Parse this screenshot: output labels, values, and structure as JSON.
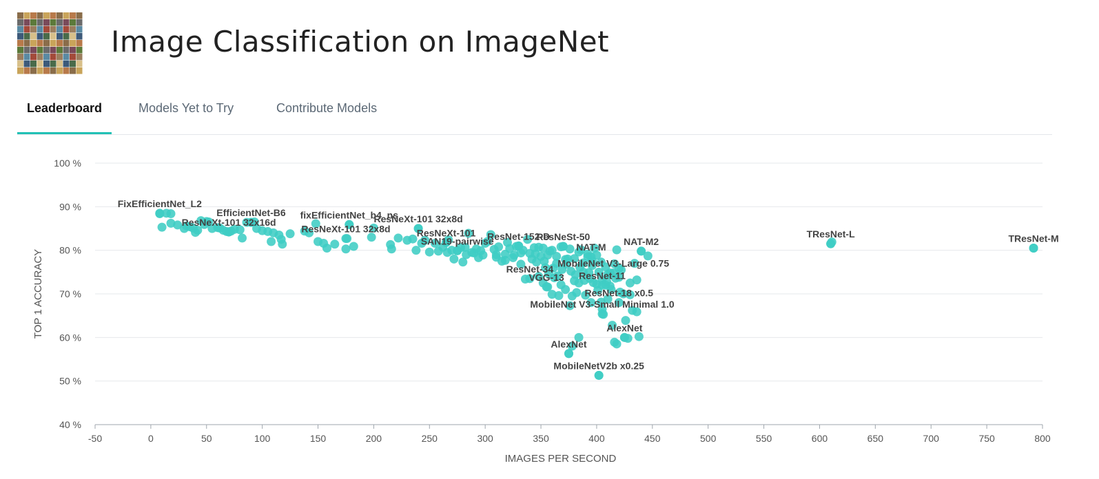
{
  "header": {
    "title": "Image Classification on ImageNet",
    "thumbnail_icon": "imagenet-mosaic-icon"
  },
  "tabs": [
    {
      "label": "Leaderboard",
      "active": true
    },
    {
      "label": "Models Yet to Try",
      "active": false
    },
    {
      "label": "Contribute Models",
      "active": false
    }
  ],
  "colors": {
    "accent": "#21c1b5",
    "point": "#3fcdc4"
  },
  "chart_data": {
    "type": "scatter",
    "xlabel": "IMAGES PER SECOND",
    "ylabel": "TOP 1 ACCURACY",
    "xlim": [
      -50,
      800
    ],
    "ylim": [
      40,
      100
    ],
    "xticks": [
      "-50",
      "0",
      "50",
      "100",
      "150",
      "200",
      "250",
      "300",
      "350",
      "400",
      "450",
      "500",
      "550",
      "600",
      "650",
      "700",
      "750",
      "800"
    ],
    "yticks": [
      "40 %",
      "50 %",
      "60 %",
      "70 %",
      "80 %",
      "90 %",
      "100 %"
    ],
    "grid": true,
    "labeled_points": [
      {
        "name": "FixEfficientNet_L2",
        "x": 8,
        "y": 88.5
      },
      {
        "name": "EfficientNet-B6",
        "x": 90,
        "y": 86.4
      },
      {
        "name": "ResNeXt-101 32x16d",
        "x": 70,
        "y": 84.2
      },
      {
        "name": "fixEfficientNet_b4_ns",
        "x": 178,
        "y": 85.9
      },
      {
        "name": "ResNeXt-101 32x8d",
        "x": 175,
        "y": 82.7
      },
      {
        "name": "ResNeXt-101 32x8d",
        "x": 240,
        "y": 85.0
      },
      {
        "name": "ResNeXt-101",
        "x": 265,
        "y": 81.8
      },
      {
        "name": "SAN19-pairwise",
        "x": 275,
        "y": 79.9
      },
      {
        "name": "ResNet-152-D",
        "x": 330,
        "y": 81.0
      },
      {
        "name": "ResNeSt-50",
        "x": 370,
        "y": 80.9
      },
      {
        "name": "NAT-M2",
        "x": 440,
        "y": 79.8
      },
      {
        "name": "NAT-M",
        "x": 395,
        "y": 78.5
      },
      {
        "name": "MobileNet V3-Large 0.75",
        "x": 415,
        "y": 74.8
      },
      {
        "name": "ResNet-34",
        "x": 340,
        "y": 73.5
      },
      {
        "name": "VGG-13",
        "x": 355,
        "y": 71.6
      },
      {
        "name": "ResNet-11",
        "x": 405,
        "y": 72.0
      },
      {
        "name": "ResNet-18 x0.5",
        "x": 420,
        "y": 68.0
      },
      {
        "name": "MobileNet V3-Small Minimal 1.0",
        "x": 405,
        "y": 65.4
      },
      {
        "name": "AlexNet",
        "x": 425,
        "y": 60.0
      },
      {
        "name": "AlexNet",
        "x": 375,
        "y": 56.3
      },
      {
        "name": "MobileNetV2b x0.25",
        "x": 402,
        "y": 51.3
      },
      {
        "name": "TResNet-L",
        "x": 610,
        "y": 81.5
      },
      {
        "name": "TResNet-M",
        "x": 792,
        "y": 80.5
      }
    ],
    "points": [
      [
        8,
        88.4
      ],
      [
        14,
        88.5
      ],
      [
        18,
        88.4
      ],
      [
        10,
        85.3
      ],
      [
        18,
        86.2
      ],
      [
        24,
        85.8
      ],
      [
        30,
        85.0
      ],
      [
        32,
        85.6
      ],
      [
        35,
        85.4
      ],
      [
        38,
        85.1
      ],
      [
        40,
        84.1
      ],
      [
        42,
        84.6
      ],
      [
        45,
        86.8
      ],
      [
        48,
        85.9
      ],
      [
        50,
        86.6
      ],
      [
        52,
        86.5
      ],
      [
        55,
        85.0
      ],
      [
        60,
        85.2
      ],
      [
        62,
        85.1
      ],
      [
        65,
        84.6
      ],
      [
        68,
        84.3
      ],
      [
        70,
        84.2
      ],
      [
        72,
        84.4
      ],
      [
        75,
        84.8
      ],
      [
        80,
        84.7
      ],
      [
        82,
        82.8
      ],
      [
        86,
        86.4
      ],
      [
        90,
        86.4
      ],
      [
        93,
        86.5
      ],
      [
        95,
        85.0
      ],
      [
        100,
        84.5
      ],
      [
        105,
        84.3
      ],
      [
        108,
        82.0
      ],
      [
        110,
        84.0
      ],
      [
        115,
        83.5
      ],
      [
        117,
        82.5
      ],
      [
        118,
        81.4
      ],
      [
        125,
        83.8
      ],
      [
        138,
        84.4
      ],
      [
        142,
        84.0
      ],
      [
        148,
        86.1
      ],
      [
        150,
        82.0
      ],
      [
        155,
        81.6
      ],
      [
        158,
        80.5
      ],
      [
        165,
        81.4
      ],
      [
        175,
        80.3
      ],
      [
        176,
        82.7
      ],
      [
        178,
        85.9
      ],
      [
        182,
        80.9
      ],
      [
        198,
        83.0
      ],
      [
        200,
        85.1
      ],
      [
        215,
        81.3
      ],
      [
        216,
        80.3
      ],
      [
        222,
        82.8
      ],
      [
        230,
        82.3
      ],
      [
        235,
        82.6
      ],
      [
        238,
        80.0
      ],
      [
        240,
        85.0
      ],
      [
        243,
        81.6
      ],
      [
        246,
        82.3
      ],
      [
        255,
        81.6
      ],
      [
        262,
        80.7
      ],
      [
        265,
        81.8
      ],
      [
        267,
        82.4
      ],
      [
        270,
        80.0
      ],
      [
        272,
        78.0
      ],
      [
        275,
        79.9
      ],
      [
        278,
        80.6
      ],
      [
        280,
        77.3
      ],
      [
        283,
        79.0
      ],
      [
        285,
        83.9
      ],
      [
        288,
        79.5
      ],
      [
        292,
        80.3
      ],
      [
        294,
        78.3
      ],
      [
        296,
        79.9
      ],
      [
        300,
        81.6
      ],
      [
        302,
        82.0
      ],
      [
        305,
        83.6
      ],
      [
        308,
        80.2
      ],
      [
        310,
        79.0
      ],
      [
        312,
        80.8
      ],
      [
        315,
        77.5
      ],
      [
        318,
        79.1
      ],
      [
        320,
        81.8
      ],
      [
        322,
        80.4
      ],
      [
        325,
        78.3
      ],
      [
        328,
        80.9
      ],
      [
        330,
        81.0
      ],
      [
        332,
        79.4
      ],
      [
        334,
        80.0
      ],
      [
        336,
        73.4
      ],
      [
        338,
        82.5
      ],
      [
        340,
        79.3
      ],
      [
        342,
        78.0
      ],
      [
        344,
        80.6
      ],
      [
        346,
        77.3
      ],
      [
        348,
        74.0
      ],
      [
        350,
        78.6
      ],
      [
        352,
        72.5
      ],
      [
        354,
        76.0
      ],
      [
        356,
        71.6
      ],
      [
        358,
        79.8
      ],
      [
        360,
        69.9
      ],
      [
        362,
        73.7
      ],
      [
        364,
        78.6
      ],
      [
        366,
        69.6
      ],
      [
        368,
        72.1
      ],
      [
        370,
        80.9
      ],
      [
        372,
        71.0
      ],
      [
        374,
        78.0
      ],
      [
        376,
        67.3
      ],
      [
        378,
        69.5
      ],
      [
        380,
        73.0
      ],
      [
        382,
        70.3
      ],
      [
        384,
        72.5
      ],
      [
        386,
        80.1
      ],
      [
        388,
        75.0
      ],
      [
        390,
        69.7
      ],
      [
        392,
        78.5
      ],
      [
        394,
        73.5
      ],
      [
        396,
        76.5
      ],
      [
        398,
        80.5
      ],
      [
        400,
        72.2
      ],
      [
        402,
        75.0
      ],
      [
        404,
        68.1
      ],
      [
        406,
        65.3
      ],
      [
        408,
        72.0
      ],
      [
        410,
        74.5
      ],
      [
        412,
        71.8
      ],
      [
        414,
        62.8
      ],
      [
        416,
        58.9
      ],
      [
        418,
        80.1
      ],
      [
        420,
        73.8
      ],
      [
        422,
        75.5
      ],
      [
        424,
        70.0
      ],
      [
        426,
        63.9
      ],
      [
        428,
        59.8
      ],
      [
        430,
        69.8
      ],
      [
        432,
        66.2
      ],
      [
        434,
        77.0
      ],
      [
        436,
        73.2
      ],
      [
        438,
        60.2
      ],
      [
        440,
        79.8
      ],
      [
        446,
        78.7
      ],
      [
        425,
        60.0
      ],
      [
        378,
        58.0
      ],
      [
        375,
        56.3
      ],
      [
        384,
        60.0
      ],
      [
        402,
        51.3
      ],
      [
        405,
        66.5
      ],
      [
        410,
        68.8
      ],
      [
        418,
        58.5
      ],
      [
        430,
        72.5
      ],
      [
        436,
        65.9
      ],
      [
        395,
        68.0
      ],
      [
        352,
        80.5
      ],
      [
        356,
        78.9
      ],
      [
        360,
        80.0
      ],
      [
        364,
        77.0
      ],
      [
        368,
        80.8
      ],
      [
        372,
        77.9
      ],
      [
        376,
        80.3
      ],
      [
        380,
        78.1
      ],
      [
        384,
        79.6
      ],
      [
        388,
        77.1
      ],
      [
        392,
        79.1
      ],
      [
        396,
        77.6
      ],
      [
        400,
        78.9
      ],
      [
        404,
        77.3
      ],
      [
        408,
        76.2
      ],
      [
        412,
        74.8
      ],
      [
        416,
        76.9
      ],
      [
        420,
        75.9
      ],
      [
        345,
        79.2
      ],
      [
        348,
        80.7
      ],
      [
        353,
        77.5
      ],
      [
        357,
        74.6
      ],
      [
        361,
        75.9
      ],
      [
        365,
        74.1
      ],
      [
        369,
        75.6
      ],
      [
        373,
        76.8
      ],
      [
        377,
        75.2
      ],
      [
        381,
        74.4
      ],
      [
        385,
        76.1
      ],
      [
        389,
        73.1
      ],
      [
        393,
        74.9
      ],
      [
        397,
        72.6
      ],
      [
        401,
        70.8
      ],
      [
        405,
        73.2
      ],
      [
        409,
        72.8
      ],
      [
        413,
        71.0
      ],
      [
        417,
        73.6
      ],
      [
        421,
        70.4
      ],
      [
        332,
        76.8
      ],
      [
        326,
        78.9
      ],
      [
        318,
        77.7
      ],
      [
        310,
        78.4
      ],
      [
        298,
        78.9
      ],
      [
        290,
        79.4
      ],
      [
        282,
        80.7
      ],
      [
        266,
        79.5
      ],
      [
        258,
        79.8
      ],
      [
        250,
        79.6
      ],
      [
        610,
        81.5
      ],
      [
        611,
        81.9
      ],
      [
        792,
        80.5
      ]
    ]
  }
}
